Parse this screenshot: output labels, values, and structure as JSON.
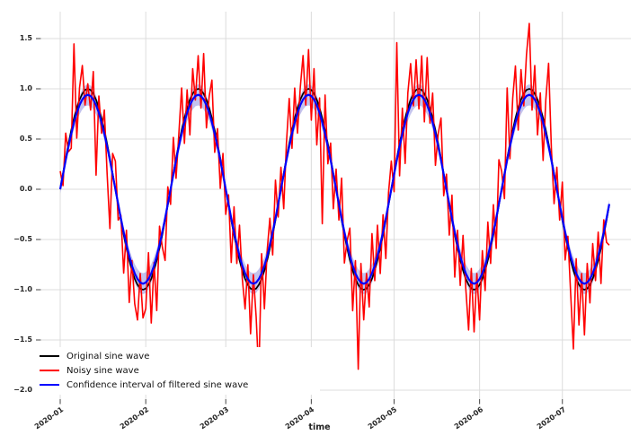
{
  "chart_data": {
    "type": "line",
    "title": "",
    "xlabel": "time",
    "x_axis": {
      "tick_labels": [
        "2020-01",
        "2020-02",
        "2020-03",
        "2020-04",
        "2020-05",
        "2020-06",
        "2020-07"
      ],
      "tick_days": [
        0,
        31,
        60,
        91,
        121,
        152,
        182
      ],
      "n_points": 200
    },
    "y_axis": {
      "tick_labels": [
        "1.5",
        "1.0",
        "0.5",
        "0.0",
        "−0.5",
        "−1.0",
        "−1.5",
        "−2.0"
      ],
      "tick_values": [
        1.5,
        1.0,
        0.5,
        0.0,
        -0.5,
        -1.0,
        -1.5,
        -2.0
      ],
      "ylim": [
        -2.09,
        1.77
      ]
    },
    "series": [
      {
        "name": "Original sine wave",
        "color": "#000000",
        "period_days": 40,
        "amplitude": 1.0,
        "cycle": [
          0,
          0.156,
          0.309,
          0.454,
          0.588,
          0.707,
          0.809,
          0.891,
          0.951,
          0.988,
          1,
          0.988,
          0.951,
          0.891,
          0.809,
          0.707,
          0.588,
          0.454,
          0.309,
          0.156,
          0,
          -0.156,
          -0.309,
          -0.454,
          -0.588,
          -0.707,
          -0.809,
          -0.891,
          -0.951,
          -0.988,
          -1,
          -0.988,
          -0.951,
          -0.891,
          -0.809,
          -0.707,
          -0.588,
          -0.454,
          -0.309,
          -0.156
        ]
      },
      {
        "name": "Noisy sine wave",
        "color": "#ff0000",
        "noise_offsets": [
          0.18,
          -0.12,
          0.25,
          -0.08,
          -0.18,
          0.74,
          -0.3,
          0.12,
          0.28,
          -0.15,
          0.05,
          -0.2,
          0.22,
          -0.75,
          0.12,
          -0.15,
          0.2,
          -0.3,
          -0.7,
          0.2,
          0.28,
          -0.15,
          0.05,
          -0.38,
          0.18,
          -0.42,
          0.1,
          -0.25,
          -0.35,
          0.15,
          -0.28,
          -0.2,
          0.32,
          -0.44,
          0.08,
          -0.5,
          0.22,
          -0.12,
          -0.4,
          0.18,
          -0.15,
          0.36,
          -0.2,
          0.1,
          0.42,
          -0.25,
          0.18,
          -0.35,
          0.25,
          -0.1,
          0.33,
          -0.18,
          0.4,
          -0.28,
          0.12,
          0.38,
          -0.22,
          0.15,
          -0.3,
          0.2,
          -0.25,
          0.1,
          -0.42,
          0.28,
          -0.15,
          0.35,
          -0.08,
          -0.3,
          0.2,
          -0.45,
          0.15,
          -0.28,
          -0.9,
          0.25,
          -0.38,
          0.1,
          0.3,
          -0.2,
          0.4,
          -0.12,
          0.22,
          -0.35,
          0.15,
          0.45,
          -0.18,
          0.3,
          -0.25,
          0.12,
          0.38,
          -0.15,
          0.39,
          -0.3,
          0.25,
          -0.45,
          0.1,
          -1.05,
          0.35,
          -0.2,
          0.15,
          -0.35,
          0.2,
          -0.15,
          0.42,
          -0.28,
          0.08,
          0.32,
          -0.4,
          0.18,
          -0.84,
          0.25,
          -0.3,
          0.15,
          -0.22,
          0.45,
          -0.1,
          0.35,
          -0.25,
          0.2,
          -0.38,
          0.12,
          0.28,
          -0.18,
          1.15,
          -0.32,
          0.22,
          -0.45,
          0.15,
          0.36,
          -0.12,
          0.3,
          -0.2,
          0.34,
          -0.28,
          0.42,
          -0.15,
          0.25,
          -0.35,
          0.1,
          0.4,
          -0.22,
          0.15,
          -0.3,
          0.25,
          -0.42,
          0.18,
          -0.25,
          0.35,
          -0.1,
          -0.45,
          0.2,
          -0.42,
          0.15,
          -0.35,
          0.28,
          -0.2,
          0.38,
          -0.15,
          0.3,
          -0.28,
          0.45,
          0.18,
          -0.25,
          0.7,
          -0.15,
          0.32,
          0.52,
          -0.22,
          0.3,
          -0.12,
          0.35,
          0.65,
          -0.2,
          0.28,
          -0.35,
          0.15,
          -0.42,
          0.3,
          0.8,
          0.1,
          -0.3,
          0.22,
          -0.15,
          0.38,
          -0.25,
          0.12,
          -0.32,
          -0.78,
          0.2,
          -0.4,
          0.15,
          -0.45,
          0.25,
          -0.18,
          0.35,
          -0.1,
          0.28,
          -0.35,
          0.15,
          -0.22,
          -0.4
        ]
      },
      {
        "name": "Confidence interval of filtered sine wave",
        "color": "#0000ff",
        "amplitude": 0.94,
        "band_color": "#8888dd",
        "band_halfwidth_cycle": [
          0.04,
          0.042,
          0.046,
          0.053,
          0.062,
          0.073,
          0.083,
          0.092,
          0.099,
          0.103,
          0.105,
          0.103,
          0.099,
          0.092,
          0.083,
          0.073,
          0.062,
          0.053,
          0.046,
          0.042,
          0.04,
          0.042,
          0.046,
          0.053,
          0.062,
          0.073,
          0.083,
          0.092,
          0.099,
          0.103,
          0.105,
          0.103,
          0.099,
          0.092,
          0.083,
          0.073,
          0.062,
          0.053,
          0.046,
          0.042
        ]
      }
    ],
    "legend": {
      "position": "lower left"
    },
    "style": {
      "background": "#ffffff",
      "grid_color": "#dcdcdc",
      "tick_color": "#444444",
      "text_color": "#262626"
    }
  }
}
